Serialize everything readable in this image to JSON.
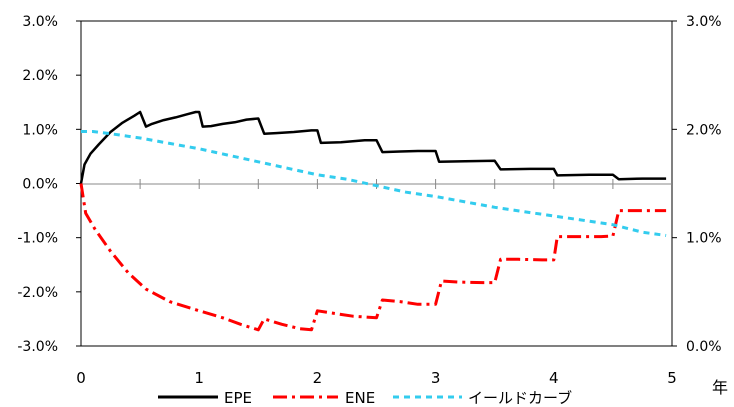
{
  "chart_data": {
    "type": "line",
    "x_unit_label": "年",
    "xlim": [
      0,
      5
    ],
    "x_ticks": [
      "0",
      "1",
      "2",
      "3",
      "4",
      "5"
    ],
    "ylim_left": [
      -0.03,
      0.03
    ],
    "ylim_right": [
      0.0,
      0.03
    ],
    "left_ticks": [
      "3.0%",
      "2.0%",
      "1.0%",
      "0.0%",
      "-1.0%",
      "-2.0%",
      "-3.0%"
    ],
    "right_ticks": [
      "3.0%",
      "2.0%",
      "1.0%",
      "0.0%"
    ],
    "legend_position": "bottom",
    "series": [
      {
        "name": "EPE",
        "axis": "left",
        "color": "#000000",
        "style": "solid",
        "points": [
          [
            0,
            0.0
          ],
          [
            0.03,
            0.0035
          ],
          [
            0.08,
            0.0055
          ],
          [
            0.15,
            0.0072
          ],
          [
            0.25,
            0.0095
          ],
          [
            0.35,
            0.0112
          ],
          [
            0.45,
            0.0125
          ],
          [
            0.5,
            0.0132
          ],
          [
            0.55,
            0.0105
          ],
          [
            0.6,
            0.011
          ],
          [
            0.7,
            0.0117
          ],
          [
            0.8,
            0.0122
          ],
          [
            0.9,
            0.0128
          ],
          [
            0.97,
            0.0132
          ],
          [
            1.0,
            0.0132
          ],
          [
            1.03,
            0.0105
          ],
          [
            1.1,
            0.0106
          ],
          [
            1.2,
            0.011
          ],
          [
            1.3,
            0.0113
          ],
          [
            1.4,
            0.0118
          ],
          [
            1.5,
            0.012
          ],
          [
            1.55,
            0.0092
          ],
          [
            1.65,
            0.0093
          ],
          [
            1.8,
            0.0095
          ],
          [
            1.95,
            0.0098
          ],
          [
            2.0,
            0.0098
          ],
          [
            2.03,
            0.0075
          ],
          [
            2.2,
            0.0076
          ],
          [
            2.4,
            0.008
          ],
          [
            2.5,
            0.008
          ],
          [
            2.55,
            0.0058
          ],
          [
            2.7,
            0.0059
          ],
          [
            2.85,
            0.006
          ],
          [
            3.0,
            0.006
          ],
          [
            3.03,
            0.004
          ],
          [
            3.25,
            0.0041
          ],
          [
            3.5,
            0.0042
          ],
          [
            3.55,
            0.0026
          ],
          [
            3.8,
            0.0027
          ],
          [
            4.0,
            0.0027
          ],
          [
            4.03,
            0.0015
          ],
          [
            4.3,
            0.0016
          ],
          [
            4.5,
            0.0016
          ],
          [
            4.55,
            0.0008
          ],
          [
            4.75,
            0.0009
          ],
          [
            4.95,
            0.0009
          ]
        ]
      },
      {
        "name": "ENE",
        "axis": "left",
        "color": "#ff0000",
        "style": "dash-dot",
        "points": [
          [
            0,
            0.0
          ],
          [
            0.04,
            -0.0055
          ],
          [
            0.12,
            -0.0085
          ],
          [
            0.25,
            -0.0125
          ],
          [
            0.4,
            -0.0165
          ],
          [
            0.55,
            -0.0195
          ],
          [
            0.75,
            -0.0218
          ],
          [
            1.0,
            -0.0235
          ],
          [
            1.2,
            -0.0248
          ],
          [
            1.35,
            -0.026
          ],
          [
            1.5,
            -0.027
          ],
          [
            1.55,
            -0.025
          ],
          [
            1.7,
            -0.026
          ],
          [
            1.85,
            -0.0268
          ],
          [
            1.95,
            -0.027
          ],
          [
            2.0,
            -0.0235
          ],
          [
            2.15,
            -0.024
          ],
          [
            2.3,
            -0.0245
          ],
          [
            2.5,
            -0.0248
          ],
          [
            2.55,
            -0.0215
          ],
          [
            2.7,
            -0.0218
          ],
          [
            2.85,
            -0.0223
          ],
          [
            3.0,
            -0.0223
          ],
          [
            3.05,
            -0.018
          ],
          [
            3.2,
            -0.0182
          ],
          [
            3.4,
            -0.0183
          ],
          [
            3.5,
            -0.0183
          ],
          [
            3.55,
            -0.014
          ],
          [
            3.7,
            -0.014
          ],
          [
            3.9,
            -0.0141
          ],
          [
            4.0,
            -0.0141
          ],
          [
            4.03,
            -0.0098
          ],
          [
            4.2,
            -0.0098
          ],
          [
            4.4,
            -0.0098
          ],
          [
            4.5,
            -0.0097
          ],
          [
            4.55,
            -0.005
          ],
          [
            4.7,
            -0.005
          ],
          [
            4.95,
            -0.005
          ]
        ]
      },
      {
        "name": "イールドカーブ",
        "axis": "right",
        "color": "#33ccee",
        "style": "dotted",
        "points": [
          [
            0,
            0.0198
          ],
          [
            0.1,
            0.0198
          ],
          [
            0.25,
            0.0196
          ],
          [
            0.5,
            0.0192
          ],
          [
            0.75,
            0.0187
          ],
          [
            1.0,
            0.0182
          ],
          [
            1.25,
            0.0176
          ],
          [
            1.5,
            0.017
          ],
          [
            1.75,
            0.0164
          ],
          [
            2.0,
            0.0158
          ],
          [
            2.25,
            0.0154
          ],
          [
            2.5,
            0.0148
          ],
          [
            2.75,
            0.0142
          ],
          [
            3.0,
            0.0138
          ],
          [
            3.25,
            0.0133
          ],
          [
            3.5,
            0.0128
          ],
          [
            3.75,
            0.0124
          ],
          [
            4.0,
            0.012
          ],
          [
            4.25,
            0.0116
          ],
          [
            4.5,
            0.0112
          ],
          [
            4.75,
            0.0105
          ],
          [
            4.95,
            0.0102
          ]
        ]
      }
    ]
  }
}
